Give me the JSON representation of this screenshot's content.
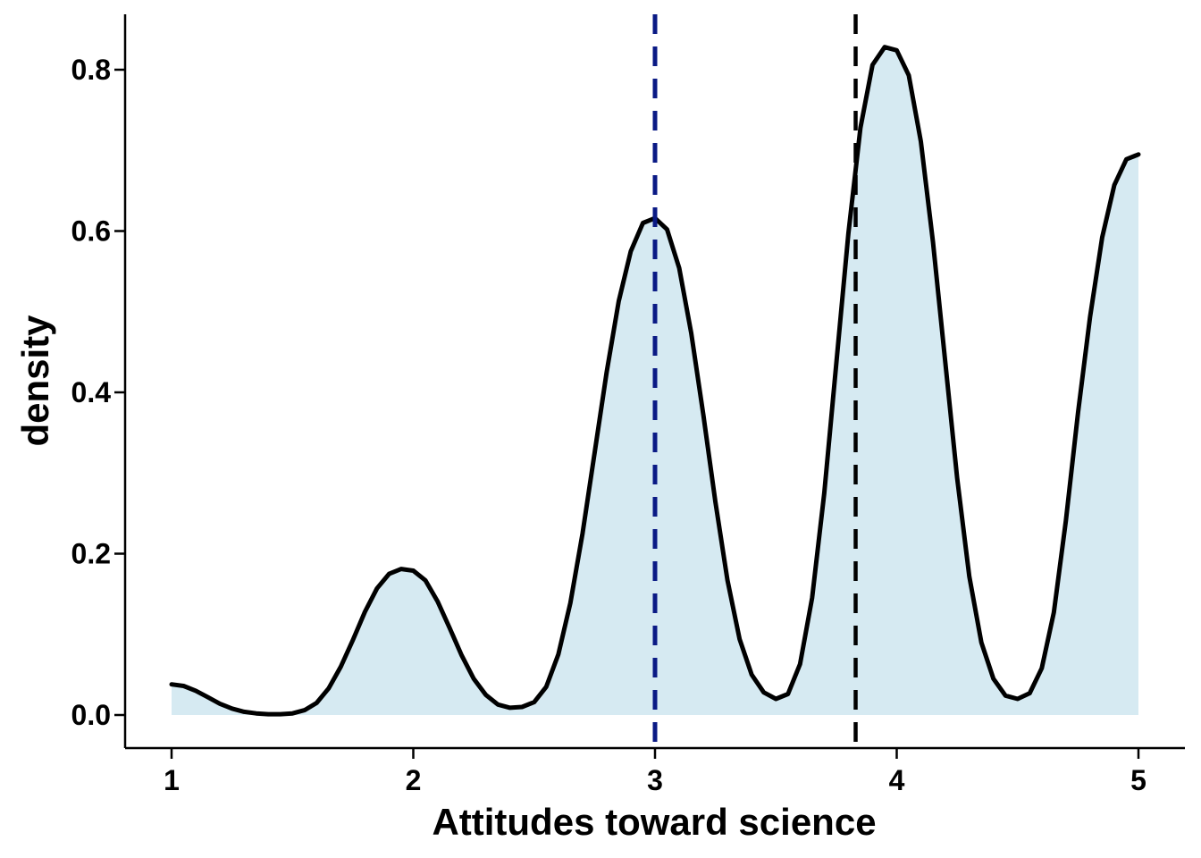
{
  "chart_data": {
    "type": "area",
    "title": "",
    "xlabel": "Attitudes toward science",
    "ylabel": "density",
    "xlim": [
      1,
      5
    ],
    "ylim": [
      0,
      0.8
    ],
    "x_ticks": [
      1,
      2,
      3,
      4,
      5
    ],
    "x_tick_labels": [
      "1",
      "2",
      "3",
      "4",
      "5"
    ],
    "y_ticks": [
      0.0,
      0.2,
      0.4,
      0.6,
      0.8
    ],
    "y_tick_labels": [
      "0.0",
      "0.2",
      "0.4",
      "0.6",
      "0.8"
    ],
    "grid": false,
    "legend": "none",
    "series": [
      {
        "x": [
          1.0,
          1.05,
          1.1,
          1.15,
          1.2,
          1.25,
          1.3,
          1.35,
          1.4,
          1.45,
          1.5,
          1.55,
          1.6,
          1.65,
          1.7,
          1.75,
          1.8,
          1.85,
          1.9,
          1.95,
          2.0,
          2.05,
          2.1,
          2.15,
          2.2,
          2.25,
          2.3,
          2.35,
          2.4,
          2.45,
          2.5,
          2.55,
          2.6,
          2.65,
          2.7,
          2.75,
          2.8,
          2.85,
          2.9,
          2.95,
          3.0,
          3.05,
          3.1,
          3.15,
          3.2,
          3.25,
          3.3,
          3.35,
          3.4,
          3.45,
          3.5,
          3.55,
          3.6,
          3.65,
          3.7,
          3.75,
          3.8,
          3.85,
          3.9,
          3.95,
          4.0,
          4.05,
          4.1,
          4.15,
          4.2,
          4.25,
          4.3,
          4.35,
          4.4,
          4.45,
          4.5,
          4.55,
          4.6,
          4.65,
          4.7,
          4.75,
          4.8,
          4.85,
          4.9,
          4.95,
          5.0
        ],
        "y": [
          0.038,
          0.036,
          0.03,
          0.022,
          0.014,
          0.008,
          0.004,
          0.002,
          0.001,
          0.001,
          0.002,
          0.006,
          0.015,
          0.033,
          0.06,
          0.093,
          0.128,
          0.157,
          0.175,
          0.181,
          0.179,
          0.167,
          0.141,
          0.108,
          0.074,
          0.045,
          0.025,
          0.013,
          0.009,
          0.01,
          0.016,
          0.035,
          0.075,
          0.139,
          0.225,
          0.325,
          0.425,
          0.513,
          0.575,
          0.61,
          0.616,
          0.602,
          0.554,
          0.473,
          0.372,
          0.264,
          0.167,
          0.094,
          0.05,
          0.028,
          0.02,
          0.026,
          0.063,
          0.145,
          0.275,
          0.436,
          0.597,
          0.728,
          0.806,
          0.828,
          0.824,
          0.793,
          0.711,
          0.586,
          0.44,
          0.294,
          0.172,
          0.09,
          0.045,
          0.024,
          0.02,
          0.027,
          0.058,
          0.127,
          0.241,
          0.375,
          0.494,
          0.592,
          0.657,
          0.689,
          0.695
        ]
      }
    ],
    "reference_lines": [
      {
        "x": 3.0,
        "color": "#0A1A85",
        "style": "dashed"
      },
      {
        "x": 3.83,
        "color": "#000000",
        "style": "dashed"
      }
    ],
    "colors": {
      "fill": "#D6EAF2",
      "line": "#000000",
      "axis": "#000000"
    }
  }
}
